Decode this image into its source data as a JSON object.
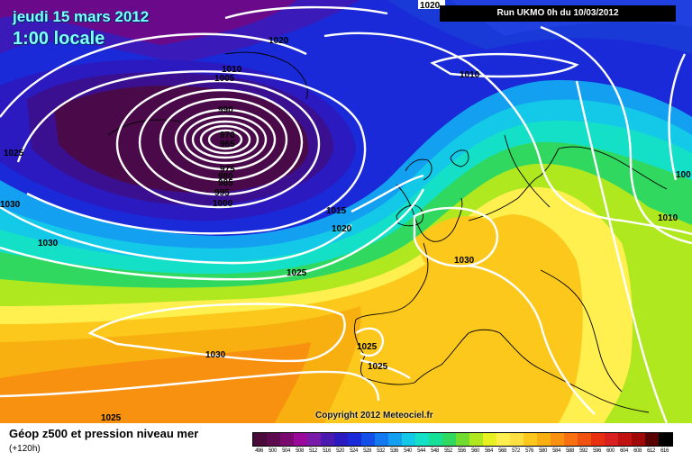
{
  "header": {
    "date": "jeudi 15 mars 2012",
    "time": "1:00 locale",
    "run": "Run UKMO 0h du 10/03/2012"
  },
  "copyright": "Copyright 2012 Meteociel.fr",
  "legend": {
    "title": "Géop z500 et pression niveau mer",
    "subtitle": "(+120h)",
    "scale": [
      {
        "label": "496",
        "color": "#4a0a3a"
      },
      {
        "label": "500",
        "color": "#5e0a4e"
      },
      {
        "label": "504",
        "color": "#7a0a6e"
      },
      {
        "label": "508",
        "color": "#9a0a9a"
      },
      {
        "label": "512",
        "color": "#7a1aaa"
      },
      {
        "label": "516",
        "color": "#4b1ab0"
      },
      {
        "label": "520",
        "color": "#2a1ac0"
      },
      {
        "label": "524",
        "color": "#1a2ad8"
      },
      {
        "label": "528",
        "color": "#1450e8"
      },
      {
        "label": "532",
        "color": "#1478f0"
      },
      {
        "label": "536",
        "color": "#14a0f0"
      },
      {
        "label": "540",
        "color": "#14c8e8"
      },
      {
        "label": "544",
        "color": "#14e0c8"
      },
      {
        "label": "548",
        "color": "#14e098"
      },
      {
        "label": "552",
        "color": "#30d860"
      },
      {
        "label": "556",
        "color": "#70dc30"
      },
      {
        "label": "560",
        "color": "#b0e820"
      },
      {
        "label": "564",
        "color": "#e8f020"
      },
      {
        "label": "568",
        "color": "#fff050"
      },
      {
        "label": "572",
        "color": "#ffe040"
      },
      {
        "label": "576",
        "color": "#fcc81c"
      },
      {
        "label": "580",
        "color": "#f8b010"
      },
      {
        "label": "584",
        "color": "#f89010"
      },
      {
        "label": "588",
        "color": "#f87010"
      },
      {
        "label": "592",
        "color": "#f05010"
      },
      {
        "label": "596",
        "color": "#e83010"
      },
      {
        "label": "600",
        "color": "#d82020"
      },
      {
        "label": "604",
        "color": "#c01010"
      },
      {
        "label": "608",
        "color": "#a00808"
      },
      {
        "label": "612",
        "color": "#580000"
      },
      {
        "label": "616",
        "color": "#000000"
      }
    ]
  },
  "isobar_labels": [
    {
      "value": "1020",
      "id": "a"
    },
    {
      "value": "1020",
      "id": "b"
    },
    {
      "value": "1010",
      "id": "c"
    },
    {
      "value": "1005",
      "id": "d"
    },
    {
      "value": "1010",
      "id": "e"
    },
    {
      "value": "990",
      "id": "f"
    },
    {
      "value": "970",
      "id": "g"
    },
    {
      "value": "965",
      "id": "h"
    },
    {
      "value": "975",
      "id": "i"
    },
    {
      "value": "980",
      "id": "j"
    },
    {
      "value": "985",
      "id": "k"
    },
    {
      "value": "995",
      "id": "l"
    },
    {
      "value": "1000",
      "id": "m"
    },
    {
      "value": "1025",
      "id": "n"
    },
    {
      "value": "1030",
      "id": "o"
    },
    {
      "value": "1030",
      "id": "p"
    },
    {
      "value": "1015",
      "id": "q"
    },
    {
      "value": "1020",
      "id": "r"
    },
    {
      "value": "1025",
      "id": "s"
    },
    {
      "value": "1030",
      "id": "t"
    },
    {
      "value": "1010",
      "id": "u"
    },
    {
      "value": "100",
      "id": "v"
    },
    {
      "value": "1025",
      "id": "w"
    },
    {
      "value": "1025",
      "id": "x"
    },
    {
      "value": "1030",
      "id": "y"
    },
    {
      "value": "1025",
      "id": "z"
    }
  ]
}
